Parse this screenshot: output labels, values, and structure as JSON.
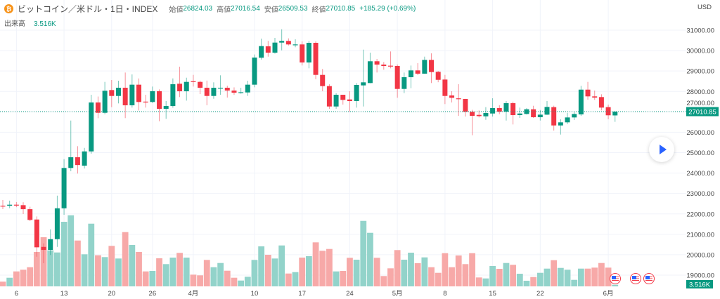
{
  "header": {
    "symbol_icon": "bitcoin-icon",
    "title": "ビットコイン／米ドル・1日・INDEX",
    "open_label": "始値",
    "open": "26824.03",
    "high_label": "高値",
    "high": "27016.54",
    "low_label": "安値",
    "low": "26509.53",
    "close_label": "終値",
    "close": "27010.85",
    "change": "+185.29 (+0.69%)"
  },
  "volume_legend": {
    "label": "出来高",
    "value": "3.516K"
  },
  "axis": {
    "currency": "USD",
    "current_price_label": "27010.85",
    "current_volume_label": "3.516K"
  },
  "colors": {
    "up": "#089981",
    "down": "#f23645",
    "vol_up": "#92d3ca",
    "vol_down": "#f7a9a8"
  },
  "chart_data": {
    "type": "candlestick",
    "title": "ビットコイン／米ドル・1日・INDEX",
    "ylim": [
      19000,
      31000
    ],
    "y_ticks": [
      "31000.00",
      "30000.00",
      "29000.00",
      "28000.00",
      "27000.00",
      "26000.00",
      "25000.00",
      "24000.00",
      "23000.00",
      "22000.00",
      "21000.00",
      "20000.00",
      "19000.00"
    ],
    "x_ticks": [
      {
        "label": "6",
        "candle_index": 2
      },
      {
        "label": "13",
        "candle_index": 9
      },
      {
        "label": "20",
        "candle_index": 16
      },
      {
        "label": "26",
        "candle_index": 22
      },
      {
        "label": "4月",
        "candle_index": 28
      },
      {
        "label": "10",
        "candle_index": 37
      },
      {
        "label": "17",
        "candle_index": 44
      },
      {
        "label": "24",
        "candle_index": 51
      },
      {
        "label": "5月",
        "candle_index": 58
      },
      {
        "label": "8",
        "candle_index": 65
      },
      {
        "label": "15",
        "candle_index": 72
      },
      {
        "label": "22",
        "candle_index": 79
      },
      {
        "label": "6月",
        "candle_index": 89
      }
    ],
    "current_price": 27010.85,
    "ohlc": [
      [
        22400,
        22680,
        22230,
        22380
      ],
      [
        22400,
        22650,
        22280,
        22450
      ],
      [
        22450,
        22580,
        22330,
        22420
      ],
      [
        22427,
        22570,
        21990,
        22230
      ],
      [
        22230,
        22350,
        21650,
        21705
      ],
      [
        21725,
        21876,
        19902,
        20363
      ],
      [
        20384,
        20556,
        19583,
        20236
      ],
      [
        20236,
        21244,
        19985,
        20762
      ],
      [
        20762,
        22894,
        20384,
        22275
      ],
      [
        22275,
        24683,
        21955,
        24250
      ],
      [
        24250,
        26574,
        24088,
        24775
      ],
      [
        24775,
        25316,
        23975,
        24393
      ],
      [
        24363,
        25233,
        24225,
        25061
      ],
      [
        25061,
        27836,
        24950,
        27458
      ],
      [
        27458,
        27750,
        26687,
        26953
      ],
      [
        26953,
        28467,
        26880,
        28032
      ],
      [
        28067,
        28560,
        27230,
        27778
      ],
      [
        27778,
        28524,
        27413,
        28181
      ],
      [
        28181,
        28926,
        26692,
        27320
      ],
      [
        27320,
        28833,
        27207,
        28330
      ],
      [
        28330,
        28638,
        27069,
        27482
      ],
      [
        27500,
        27836,
        27207,
        27490
      ],
      [
        27482,
        28238,
        27434,
        28010
      ],
      [
        28010,
        28100,
        26540,
        27148
      ],
      [
        27148,
        27527,
        26657,
        27285
      ],
      [
        27285,
        28638,
        27200,
        28352
      ],
      [
        28376,
        29212,
        27723,
        28008
      ],
      [
        28008,
        28672,
        27550,
        28467
      ],
      [
        28500,
        28810,
        28238,
        28490
      ],
      [
        28467,
        28530,
        27870,
        28180
      ],
      [
        28180,
        28530,
        27320,
        27778
      ],
      [
        27778,
        28445,
        27640,
        28180
      ],
      [
        28170,
        28789,
        27836,
        28180
      ],
      [
        28180,
        28280,
        27700,
        28043
      ],
      [
        28043,
        28200,
        27830,
        27939
      ],
      [
        27940,
        28180,
        27890,
        27960
      ],
      [
        27950,
        28524,
        27780,
        28330
      ],
      [
        28330,
        29810,
        28204,
        29659
      ],
      [
        29650,
        30587,
        29560,
        30220
      ],
      [
        30209,
        30474,
        29704,
        29900
      ],
      [
        29900,
        30622,
        29850,
        30392
      ],
      [
        30392,
        31045,
        30013,
        30474
      ],
      [
        30474,
        30600,
        30250,
        30302
      ],
      [
        30290,
        30553,
        30164,
        30302
      ],
      [
        30302,
        30450,
        29270,
        29418
      ],
      [
        29418,
        30475,
        29132,
        30381
      ],
      [
        30381,
        30450,
        28600,
        28810
      ],
      [
        28810,
        29099,
        28008,
        28260
      ],
      [
        28260,
        28350,
        27148,
        27262
      ],
      [
        27262,
        27916,
        27150,
        27836
      ],
      [
        27836,
        27836,
        27355,
        27585
      ],
      [
        27606,
        28008,
        27000,
        27527
      ],
      [
        27527,
        28410,
        27207,
        28318
      ],
      [
        28295,
        30047,
        27262,
        28445
      ],
      [
        28410,
        29900,
        28400,
        29477
      ],
      [
        29477,
        29590,
        28926,
        29315
      ],
      [
        29315,
        29442,
        29064,
        29245
      ],
      [
        29260,
        29958,
        29132,
        29246
      ],
      [
        29246,
        29320,
        27688,
        28122
      ],
      [
        28122,
        28926,
        27916,
        28696
      ],
      [
        28696,
        29270,
        28157,
        29030
      ],
      [
        29030,
        29384,
        28800,
        28870
      ],
      [
        28870,
        29704,
        28860,
        29545
      ],
      [
        29545,
        29865,
        28410,
        28947
      ],
      [
        28960,
        29000,
        28450,
        28568
      ],
      [
        28582,
        28810,
        27380,
        27778
      ],
      [
        27802,
        28008,
        27458,
        27688
      ],
      [
        27660,
        28352,
        26804,
        27640
      ],
      [
        27630,
        27640,
        26770,
        27000
      ],
      [
        27000,
        27100,
        25852,
        26804
      ],
      [
        26850,
        27069,
        26725,
        26790
      ],
      [
        26780,
        27230,
        26608,
        26942
      ],
      [
        26918,
        27664,
        26770,
        27183
      ],
      [
        27183,
        27320,
        26884,
        27010
      ],
      [
        27010,
        27527,
        26574,
        27424
      ],
      [
        27424,
        27500,
        26381,
        26839
      ],
      [
        26839,
        27207,
        26700,
        26918
      ],
      [
        26895,
        27180,
        26870,
        27126
      ],
      [
        27126,
        27297,
        26700,
        26736
      ],
      [
        26736,
        27090,
        26574,
        26862
      ],
      [
        26862,
        27527,
        26850,
        27240
      ],
      [
        27230,
        27300,
        26082,
        26333
      ],
      [
        26333,
        26633,
        25886,
        26485
      ],
      [
        26485,
        26953,
        26400,
        26725
      ],
      [
        26725,
        27000,
        26600,
        26895
      ],
      [
        26874,
        28273,
        26800,
        28087
      ],
      [
        28087,
        28467,
        27595,
        27757
      ],
      [
        27757,
        28043,
        27585,
        27700
      ],
      [
        27723,
        27860,
        27069,
        27207
      ],
      [
        27230,
        27355,
        26633,
        26830
      ],
      [
        26824.03,
        27016.54,
        26509.53,
        27010.85
      ]
    ],
    "volume_relative": [
      6.7,
      12.3,
      21.3,
      23.7,
      27.3,
      49,
      70,
      51.3,
      48.3,
      92,
      101.3,
      65.3,
      45.7,
      89.3,
      44.3,
      41.7,
      57.7,
      39.7,
      77.3,
      59,
      49,
      21.3,
      22,
      40,
      31.7,
      41,
      47.7,
      41,
      16.7,
      15.7,
      37.7,
      27.3,
      33.3,
      22.3,
      12.3,
      8.3,
      13.7,
      37.7,
      57,
      45,
      39.7,
      58.3,
      18.3,
      20.3,
      41,
      43,
      62.7,
      50.7,
      53.3,
      21.3,
      22,
      40.7,
      38,
      93.3,
      76.3,
      40.7,
      14.7,
      25.7,
      51.7,
      38,
      48,
      33,
      41.3,
      27.3,
      19.3,
      47.3,
      27.3,
      44,
      31.7,
      47.3,
      12.7,
      11.3,
      29,
      25,
      33.3,
      30.7,
      18,
      8,
      13.3,
      19.3,
      25.3,
      37.3,
      26.3,
      23.7,
      9.3,
      25.3,
      25.3,
      26.7,
      33.3,
      26.7,
      2.3
    ],
    "legend": "top-left"
  }
}
